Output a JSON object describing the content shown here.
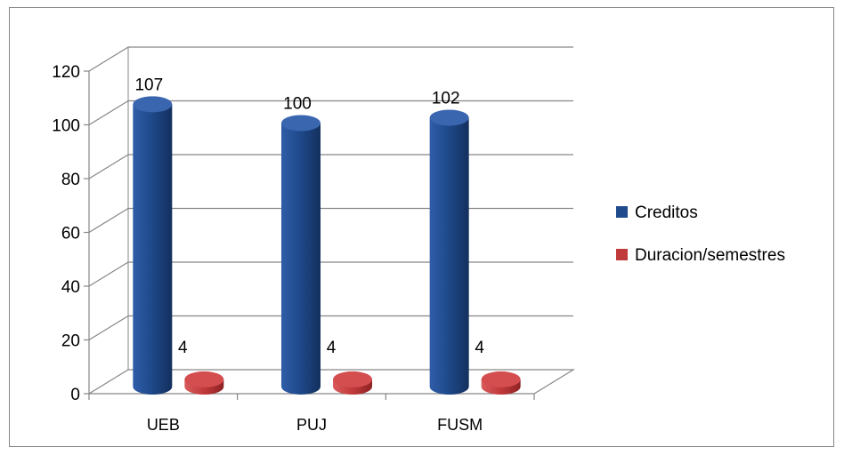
{
  "chart_data": {
    "type": "bar",
    "categories": [
      "UEB",
      "PUJ",
      "FUSM"
    ],
    "series": [
      {
        "name": "Creditos",
        "values": [
          107,
          100,
          102
        ],
        "color": "#1F4A8C"
      },
      {
        "name": "Duracion/semestres",
        "values": [
          4,
          4,
          4
        ],
        "color": "#C0393B"
      }
    ],
    "ylim": [
      0,
      120
    ],
    "yticks": [
      0,
      20,
      40,
      60,
      80,
      100,
      120
    ],
    "data_labels": [
      [
        "107",
        "100",
        "102"
      ],
      [
        "4",
        "4",
        "4"
      ]
    ],
    "grid": true,
    "legend_position": "right",
    "style": "3d-cylinder"
  }
}
